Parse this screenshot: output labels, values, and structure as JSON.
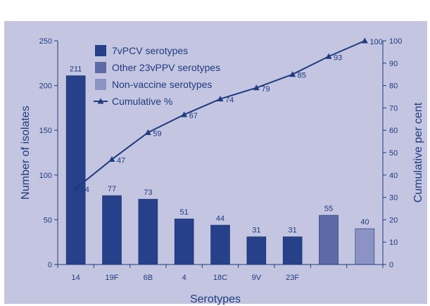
{
  "chart_data": {
    "type": "bar",
    "categories": [
      "14",
      "19F",
      "6B",
      "4",
      "18C",
      "9V",
      "23F",
      "",
      ""
    ],
    "xlabel": "Serotypes",
    "ylabel": "Number of isolates",
    "y2label": "Cumulative per cent",
    "ylim": [
      0,
      250
    ],
    "y2lim": [
      0,
      100
    ],
    "yticks": [
      0,
      50,
      100,
      150,
      200,
      250
    ],
    "y2ticks": [
      0,
      10,
      20,
      30,
      40,
      50,
      60,
      70,
      80,
      90,
      100
    ],
    "series": [
      {
        "name": "7vPCV serotypes",
        "type": "bar",
        "color": "#26418a",
        "values": [
          211,
          77,
          73,
          51,
          44,
          31,
          31,
          null,
          null
        ]
      },
      {
        "name": "Other 23vPPV serotypes",
        "type": "bar",
        "color": "#5e6aa6",
        "values": [
          null,
          null,
          null,
          null,
          null,
          null,
          null,
          55,
          null
        ]
      },
      {
        "name": "Non-vaccine serotypes",
        "type": "bar",
        "color": "#8a93c4",
        "values": [
          null,
          null,
          null,
          null,
          null,
          null,
          null,
          null,
          40
        ]
      },
      {
        "name": "Cumulative %",
        "type": "line",
        "axis": "right",
        "color": "#1f3a80",
        "values": [
          34,
          47,
          59,
          67,
          74,
          79,
          85,
          93,
          100
        ]
      }
    ],
    "bar_labels": [
      "211",
      "77",
      "73",
      "51",
      "44",
      "31",
      "31",
      "55",
      "40"
    ],
    "legend": {
      "position": "top-left"
    },
    "grid": false,
    "colors": {
      "background": "#c4c6e1",
      "axis": "#1f3a80",
      "text": "#1f3a80"
    }
  }
}
